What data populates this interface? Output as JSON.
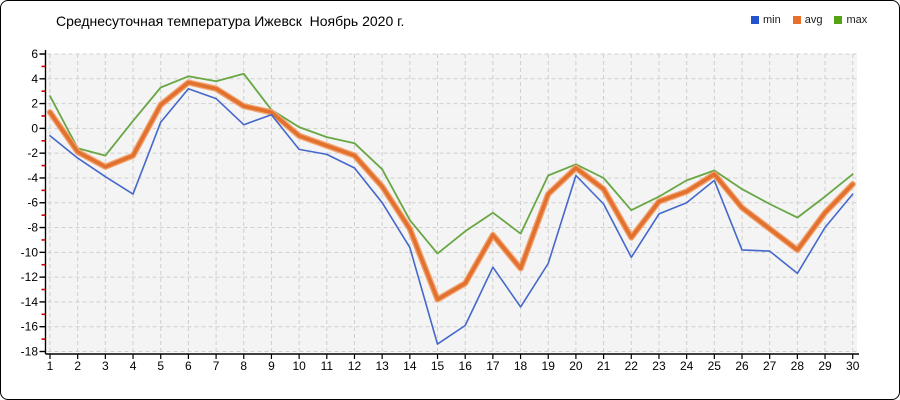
{
  "chart_data": {
    "type": "line",
    "title": "Среднесуточная температура Ижевск  Ноябрь 2020 г.",
    "x": [
      1,
      2,
      3,
      4,
      5,
      6,
      7,
      8,
      9,
      10,
      11,
      12,
      13,
      14,
      15,
      16,
      17,
      18,
      19,
      20,
      21,
      22,
      23,
      24,
      25,
      26,
      27,
      28,
      29,
      30
    ],
    "xlabel": "",
    "ylabel": "",
    "ylim": [
      -18,
      6
    ],
    "ytick_major": 2,
    "grid": "dashed",
    "legend_position": "top-right",
    "plot_bg_color": "#f4f4f4",
    "grid_color": "#cfcfcf",
    "axis_color": "#000000",
    "minor_tick_color": "#cc0000",
    "series": [
      {
        "name": "min",
        "color": "#4468cb",
        "legend_color": "#2353cc",
        "width": 1.6,
        "values": [
          -0.6,
          -2.4,
          -3.9,
          -5.3,
          0.5,
          3.2,
          2.4,
          0.3,
          1.1,
          -1.7,
          -2.1,
          -3.2,
          -6.0,
          -9.6,
          -17.4,
          -15.9,
          -11.2,
          -14.4,
          -10.9,
          -3.8,
          -6.1,
          -10.4,
          -6.9,
          -6.0,
          -4.2,
          -9.8,
          -9.9,
          -11.7,
          -8.0,
          -5.3
        ]
      },
      {
        "name": "avg",
        "color": "#e2702e",
        "legend_color": "#e8702a",
        "halo": "#f2a470",
        "width": 3.6,
        "values": [
          1.3,
          -1.9,
          -3.1,
          -2.2,
          1.9,
          3.7,
          3.2,
          1.8,
          1.3,
          -0.6,
          -1.4,
          -2.2,
          -4.7,
          -8.1,
          -13.8,
          -12.5,
          -8.6,
          -11.3,
          -5.3,
          -3.2,
          -4.9,
          -8.8,
          -5.9,
          -5.1,
          -3.7,
          -6.4,
          -8.1,
          -9.8,
          -6.8,
          -4.5
        ]
      },
      {
        "name": "max",
        "color": "#68a744",
        "legend_color": "#56a214",
        "width": 1.8,
        "values": [
          2.6,
          -1.6,
          -2.2,
          0.6,
          3.3,
          4.2,
          3.8,
          4.4,
          1.5,
          0.1,
          -0.7,
          -1.2,
          -3.3,
          -7.4,
          -10.1,
          -8.3,
          -6.8,
          -8.5,
          -3.8,
          -2.9,
          -4.0,
          -6.6,
          -5.5,
          -4.2,
          -3.4,
          -4.9,
          -6.1,
          -7.2,
          -5.5,
          -3.7
        ]
      }
    ]
  }
}
